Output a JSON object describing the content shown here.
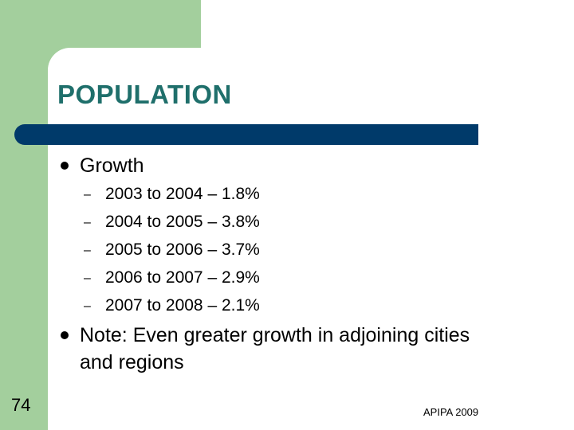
{
  "slide": {
    "title": "POPULATION",
    "bullets": [
      {
        "text": "Growth",
        "subitems": [
          "2003 to 2004 – 1.8%",
          "2004 to 2005 – 3.8%",
          "2005 to 2006 – 3.7%",
          "2006 to 2007 – 2.9%",
          "2007 to 2008 – 2.1%"
        ]
      },
      {
        "text_line1": "Note: Even greater growth in adjoining cities",
        "text_line2": "and regions"
      }
    ],
    "slide_number": "74",
    "footer": "APIPA 2009",
    "dash_glyph": "–"
  },
  "colors": {
    "background_green": "#a3cf9d",
    "title_color": "#1f6f6b",
    "bar_color": "#003a6a"
  }
}
